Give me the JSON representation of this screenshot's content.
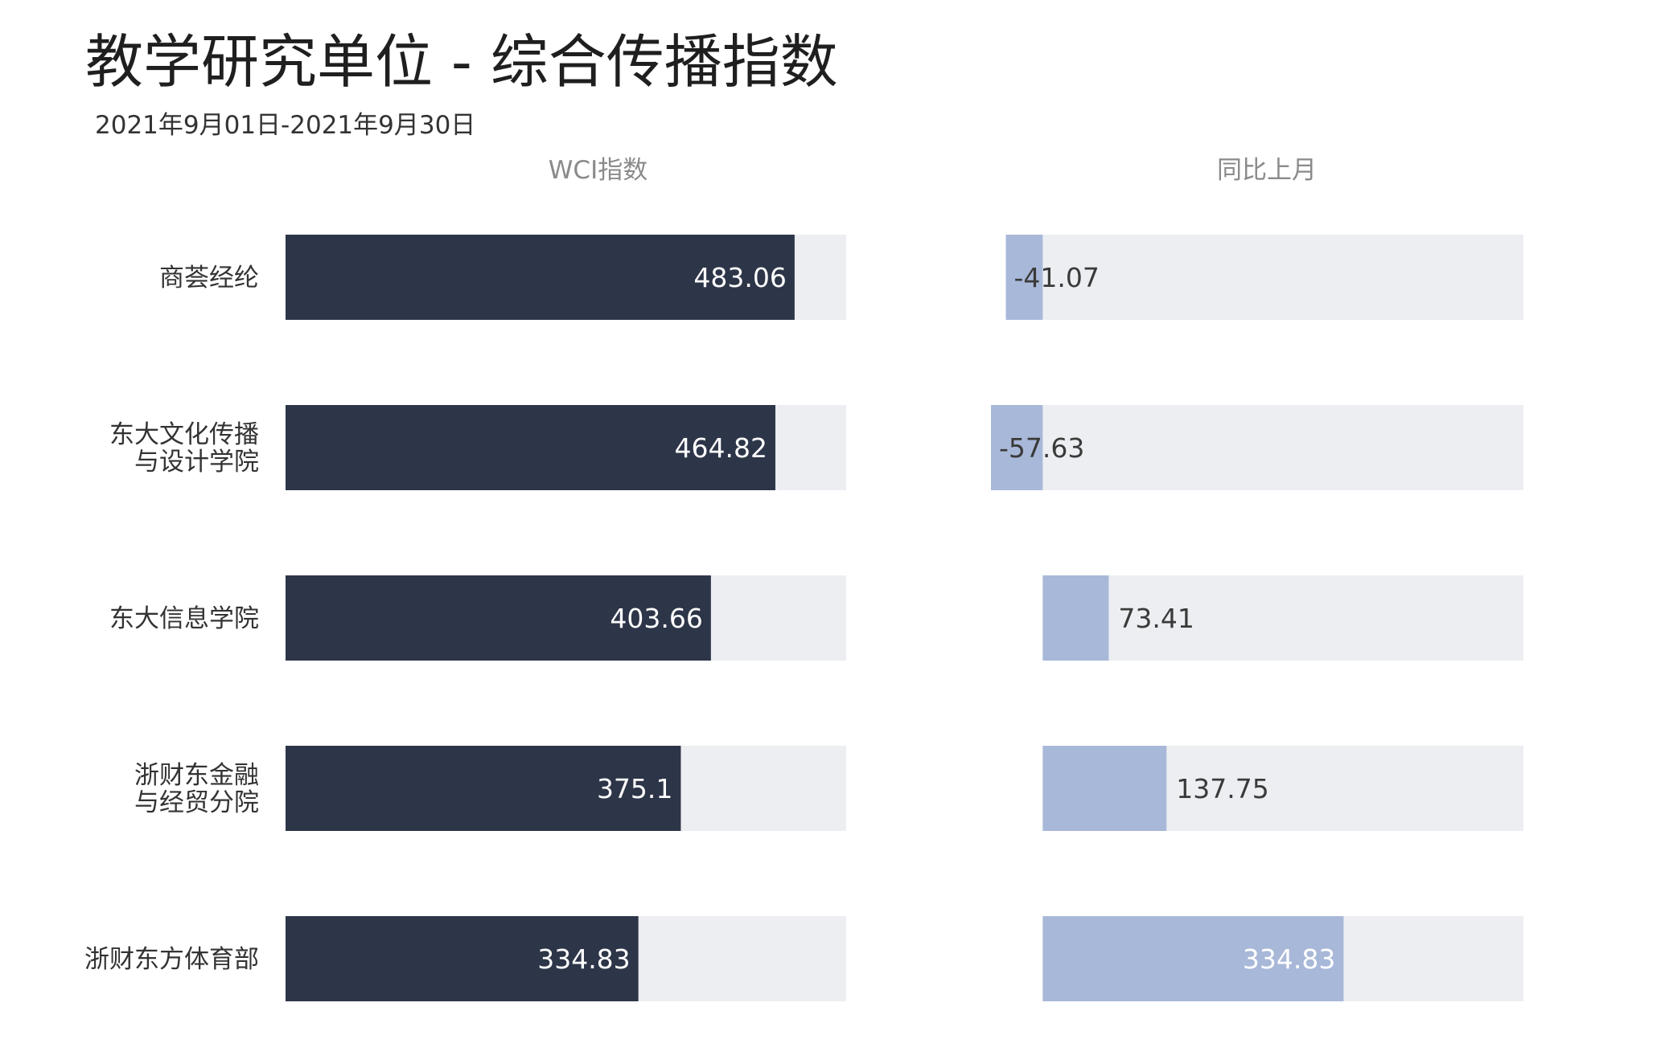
{
  "header": {
    "title": "教学研究单位 - 综合传播指数",
    "date_range": "2021年9月01日-2021年9月30日"
  },
  "colors": {
    "wci_bar": "#2d3548",
    "mom_bar": "#a8b8d8",
    "track": "#eceef2",
    "label_light": "#ffffff",
    "label_dark": "#3a3a3a",
    "panel_title": "#8a8a8a"
  },
  "chart_data": [
    {
      "type": "bar",
      "orientation": "horizontal",
      "title": "WCI指数",
      "categories": [
        [
          "商荟经纶"
        ],
        [
          "东大文化传播",
          "与设计学院"
        ],
        [
          "东大信息学院"
        ],
        [
          "浙财东金融",
          "与经贸分院"
        ],
        [
          "浙财东方体育部"
        ]
      ],
      "values": [
        483.06,
        464.82,
        403.66,
        375.1,
        334.83
      ],
      "value_labels": [
        "483.06",
        "464.82",
        "403.66",
        "375.1",
        "334.83"
      ],
      "xlim": [
        0,
        532
      ]
    },
    {
      "type": "bar",
      "orientation": "horizontal",
      "title": "同比上月",
      "categories": [
        [
          "商荟经纶"
        ],
        [
          "东大文化传播",
          "与设计学院"
        ],
        [
          "东大信息学院"
        ],
        [
          "浙财东金融",
          "与经贸分院"
        ],
        [
          "浙财东方体育部"
        ]
      ],
      "values": [
        -41.07,
        -57.63,
        73.41,
        137.75,
        334.83
      ],
      "value_labels": [
        "-41.07",
        "-57.63",
        "73.41",
        "137.75",
        "334.83"
      ],
      "xlim": [
        -57.63,
        535
      ]
    }
  ]
}
